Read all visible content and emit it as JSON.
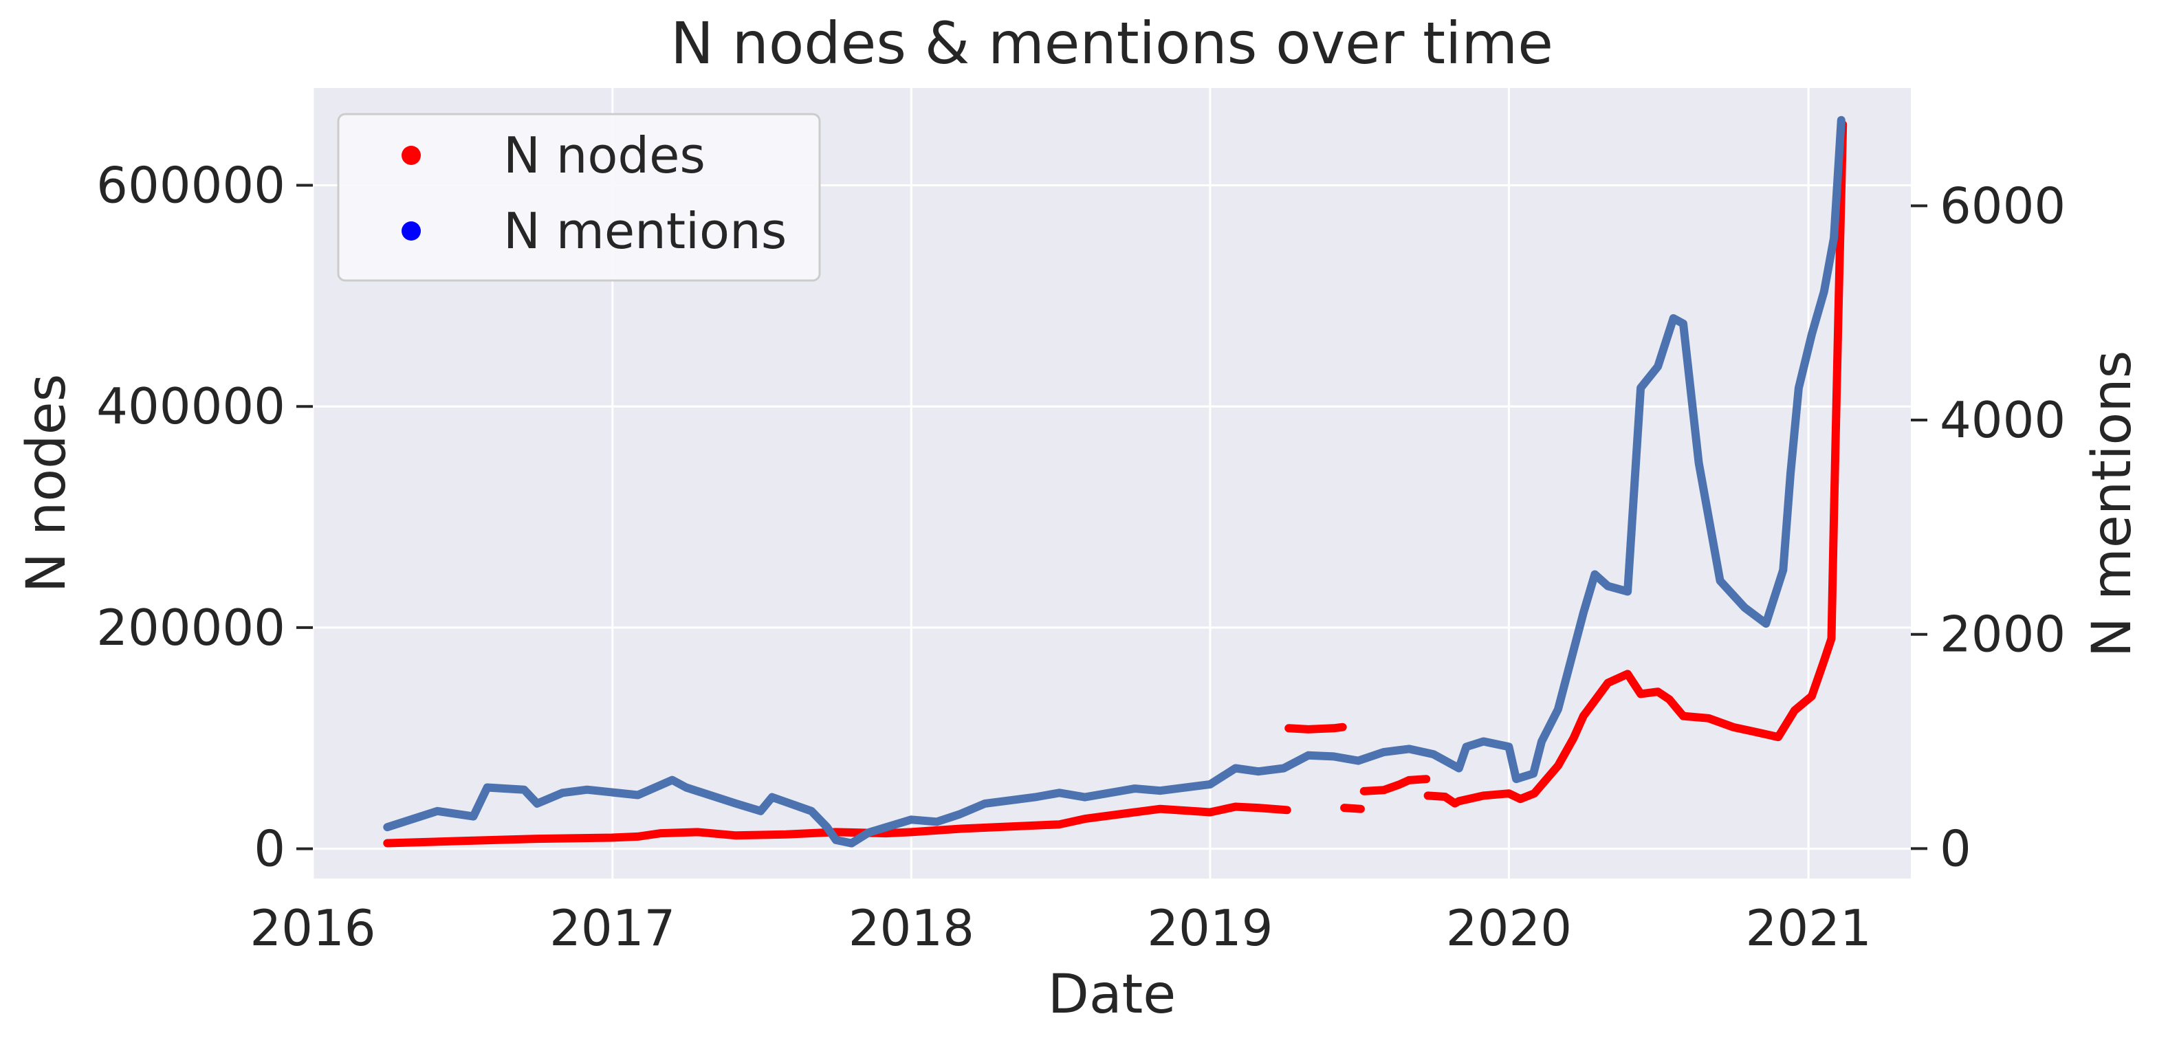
{
  "chart_data": {
    "type": "scatter",
    "title": "N nodes & mentions over time",
    "xlabel": "Date",
    "ylabel_left": "N nodes",
    "ylabel_right": "N mentions",
    "x_ticks": [
      "2016",
      "2017",
      "2018",
      "2019",
      "2020",
      "2021"
    ],
    "x_range": [
      "2016-01-01",
      "2021-05-06"
    ],
    "y_left_ticks": [
      0,
      200000,
      400000,
      600000
    ],
    "y_left_range": [
      -27000,
      688000
    ],
    "y_right_ticks": [
      0,
      2000,
      4000,
      6000
    ],
    "y_right_range": [
      -280,
      7100
    ],
    "grid": true,
    "legend_position": "top-left",
    "legend": [
      {
        "label": "N nodes",
        "color": "#ff0000"
      },
      {
        "label": "N mentions",
        "color": "#0000ff"
      }
    ],
    "series": [
      {
        "name": "N nodes",
        "axis": "left",
        "color": "#ff0000",
        "segments": [
          [
            [
              "2016-04-01",
              5000
            ],
            [
              "2016-07-01",
              7000
            ],
            [
              "2016-10-01",
              9000
            ],
            [
              "2016-12-31",
              10000
            ],
            [
              "2017-02-01",
              11000
            ],
            [
              "2017-03-01",
              14000
            ],
            [
              "2017-04-15",
              15000
            ],
            [
              "2017-06-01",
              12000
            ],
            [
              "2017-08-01",
              13000
            ],
            [
              "2017-10-01",
              15000
            ],
            [
              "2017-12-01",
              14000
            ],
            [
              "2018-01-01",
              15000
            ],
            [
              "2018-03-01",
              18000
            ],
            [
              "2018-05-01",
              20000
            ],
            [
              "2018-07-01",
              22000
            ],
            [
              "2018-08-01",
              27000
            ],
            [
              "2018-10-01",
              33000
            ],
            [
              "2018-11-01",
              36000
            ],
            [
              "2019-01-01",
              33000
            ],
            [
              "2019-02-01",
              38000
            ],
            [
              "2019-03-01",
              37000
            ],
            [
              "2019-04-05",
              35000
            ]
          ],
          [
            [
              "2019-04-07",
              109000
            ],
            [
              "2019-05-01",
              108000
            ],
            [
              "2019-06-01",
              109000
            ],
            [
              "2019-06-12",
              110000
            ]
          ],
          [
            [
              "2019-06-14",
              37000
            ],
            [
              "2019-07-04",
              36000
            ]
          ],
          [
            [
              "2019-07-08",
              52000
            ],
            [
              "2019-08-01",
              53000
            ],
            [
              "2019-08-20",
              58000
            ],
            [
              "2019-09-01",
              62000
            ],
            [
              "2019-09-22",
              63000
            ]
          ],
          [
            [
              "2019-09-24",
              48000
            ],
            [
              "2019-10-15",
              47000
            ],
            [
              "2019-10-27",
              41000
            ],
            [
              "2019-11-01",
              43000
            ],
            [
              "2019-12-01",
              48000
            ],
            [
              "2020-01-01",
              50000
            ],
            [
              "2020-01-15",
              45000
            ],
            [
              "2020-02-01",
              50000
            ],
            [
              "2020-03-01",
              75000
            ],
            [
              "2020-03-20",
              100000
            ],
            [
              "2020-04-01",
              120000
            ],
            [
              "2020-05-01",
              150000
            ],
            [
              "2020-05-25",
              158000
            ],
            [
              "2020-06-10",
              140000
            ],
            [
              "2020-07-01",
              142000
            ],
            [
              "2020-07-15",
              135000
            ],
            [
              "2020-08-01",
              120000
            ],
            [
              "2020-09-01",
              118000
            ],
            [
              "2020-10-01",
              110000
            ],
            [
              "2020-11-01",
              105000
            ],
            [
              "2020-11-25",
              101000
            ],
            [
              "2020-12-15",
              125000
            ],
            [
              "2021-01-05",
              138000
            ],
            [
              "2021-01-20",
              170000
            ],
            [
              "2021-01-29",
              190000
            ],
            [
              "2021-02-01",
              300000
            ],
            [
              "2021-02-07",
              500000
            ],
            [
              "2021-02-12",
              655000
            ]
          ]
        ]
      },
      {
        "name": "N mentions",
        "axis": "right",
        "color": "#4c72b0",
        "segments": [
          [
            [
              "2016-04-01",
              200
            ],
            [
              "2016-06-01",
              350
            ],
            [
              "2016-07-15",
              300
            ],
            [
              "2016-08-01",
              570
            ],
            [
              "2016-09-15",
              550
            ],
            [
              "2016-10-01",
              420
            ],
            [
              "2016-11-01",
              520
            ],
            [
              "2016-12-01",
              550
            ],
            [
              "2017-02-01",
              500
            ],
            [
              "2017-03-15",
              640
            ],
            [
              "2017-04-01",
              570
            ],
            [
              "2017-06-01",
              420
            ],
            [
              "2017-07-01",
              350
            ],
            [
              "2017-07-15",
              480
            ],
            [
              "2017-09-01",
              350
            ],
            [
              "2017-09-20",
              200
            ],
            [
              "2017-10-01",
              80
            ],
            [
              "2017-10-20",
              50
            ],
            [
              "2017-11-10",
              150
            ],
            [
              "2018-01-01",
              270
            ],
            [
              "2018-02-01",
              250
            ],
            [
              "2018-03-01",
              320
            ],
            [
              "2018-04-01",
              420
            ],
            [
              "2018-06-01",
              480
            ],
            [
              "2018-07-01",
              520
            ],
            [
              "2018-08-01",
              480
            ],
            [
              "2018-10-01",
              560
            ],
            [
              "2018-11-01",
              540
            ],
            [
              "2019-01-01",
              600
            ],
            [
              "2019-02-01",
              750
            ],
            [
              "2019-03-01",
              720
            ],
            [
              "2019-04-01",
              750
            ],
            [
              "2019-05-01",
              870
            ],
            [
              "2019-06-01",
              860
            ],
            [
              "2019-07-01",
              820
            ],
            [
              "2019-08-01",
              900
            ],
            [
              "2019-09-01",
              930
            ],
            [
              "2019-10-01",
              880
            ],
            [
              "2019-11-01",
              750
            ],
            [
              "2019-11-10",
              950
            ],
            [
              "2019-12-01",
              1000
            ],
            [
              "2020-01-01",
              950
            ],
            [
              "2020-01-10",
              650
            ],
            [
              "2020-01-31",
              700
            ],
            [
              "2020-02-10",
              1000
            ],
            [
              "2020-03-01",
              1300
            ],
            [
              "2020-04-01",
              2200
            ],
            [
              "2020-04-15",
              2560
            ],
            [
              "2020-05-01",
              2450
            ],
            [
              "2020-05-25",
              2400
            ],
            [
              "2020-06-10",
              4300
            ],
            [
              "2020-07-01",
              4500
            ],
            [
              "2020-07-20",
              4950
            ],
            [
              "2020-08-01",
              4900
            ],
            [
              "2020-08-20",
              3600
            ],
            [
              "2020-09-15",
              2500
            ],
            [
              "2020-10-15",
              2250
            ],
            [
              "2020-11-10",
              2100
            ],
            [
              "2020-12-01",
              2600
            ],
            [
              "2020-12-10",
              3500
            ],
            [
              "2020-12-20",
              4300
            ],
            [
              "2021-01-05",
              4800
            ],
            [
              "2021-01-20",
              5200
            ],
            [
              "2021-02-01",
              5700
            ],
            [
              "2021-02-10",
              6800
            ]
          ]
        ]
      }
    ]
  }
}
